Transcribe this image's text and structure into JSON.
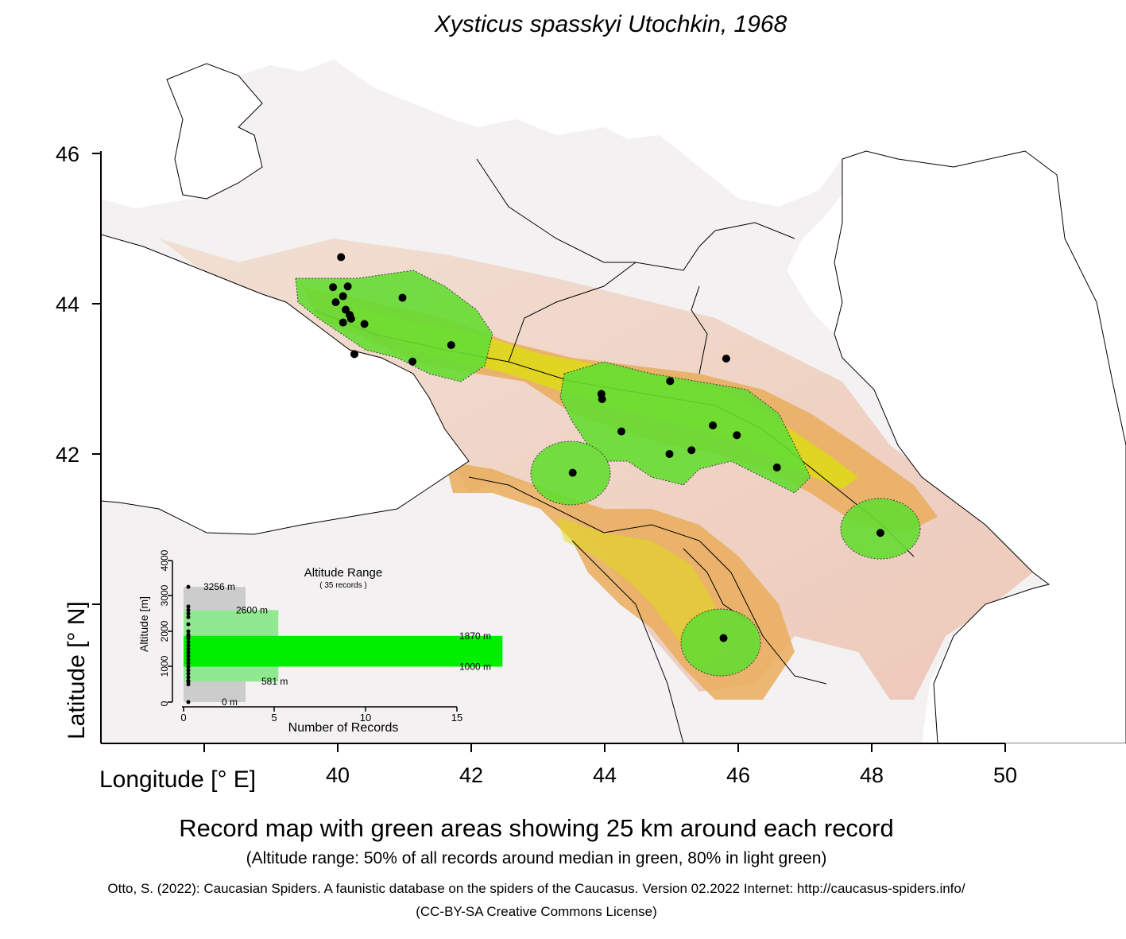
{
  "title": "Xysticus spasskyi Utochkin, 1968",
  "axes": {
    "x_label": "Longitude [° E]",
    "y_label": "Latitude [° N]",
    "x_ticks": [
      "40",
      "42",
      "44",
      "46",
      "48",
      "50"
    ],
    "y_ticks": [
      "46",
      "44",
      "42"
    ]
  },
  "captions": {
    "main": "Record map with green areas showing 25 km around each record",
    "sub": "(Altitude range: 50% of all records around median in green, 80% in light green)",
    "citation": "Otto, S. (2022): Caucasian Spiders. A faunistic database on the spiders of the Caucasus. Version 02.2022 Internet: http://caucasus-spiders.info/",
    "license": "(CC-BY-SA Creative Commons License)"
  },
  "inset": {
    "title": "Altitude Range",
    "subtitle": "( 35 records )",
    "y_label": "Altitude [m]",
    "x_label": "Number of Records",
    "y_ticks": [
      "0",
      "1000",
      "2000",
      "3000",
      "4000"
    ],
    "x_ticks": [
      "0",
      "5",
      "10",
      "15"
    ],
    "labels": {
      "max": "3256  m",
      "p80_high": "2600  m",
      "p50_high": "1870  m",
      "p50_low": "1000  m",
      "p80_low": "581  m",
      "min": "0  m"
    },
    "altitude_values": {
      "max": 3256,
      "p80_high": 2600,
      "p50_high": 1870,
      "p50_low": 1000,
      "p80_low": 581,
      "min": 0,
      "count_50": 17.5,
      "count_80": 5.2,
      "count_all": 3.4
    },
    "record_altitudes": [
      3256,
      2700,
      2600,
      2500,
      2400,
      2200,
      2000,
      1900,
      1870,
      1800,
      1700,
      1600,
      1500,
      1400,
      1300,
      1200,
      1100,
      1000,
      900,
      800,
      700,
      600,
      581,
      500,
      0
    ]
  },
  "records": [
    {
      "lon": 40.05,
      "lat": 44.62
    },
    {
      "lon": 39.93,
      "lat": 44.22
    },
    {
      "lon": 40.15,
      "lat": 44.23
    },
    {
      "lon": 40.08,
      "lat": 44.1
    },
    {
      "lon": 39.97,
      "lat": 44.02
    },
    {
      "lon": 40.12,
      "lat": 43.92
    },
    {
      "lon": 40.18,
      "lat": 43.85
    },
    {
      "lon": 40.2,
      "lat": 43.8
    },
    {
      "lon": 40.08,
      "lat": 43.75
    },
    {
      "lon": 40.4,
      "lat": 43.73
    },
    {
      "lon": 40.97,
      "lat": 44.08
    },
    {
      "lon": 40.25,
      "lat": 43.33
    },
    {
      "lon": 41.12,
      "lat": 43.23
    },
    {
      "lon": 41.7,
      "lat": 43.45
    },
    {
      "lon": 43.95,
      "lat": 42.8
    },
    {
      "lon": 43.96,
      "lat": 42.73
    },
    {
      "lon": 44.25,
      "lat": 42.3
    },
    {
      "lon": 43.52,
      "lat": 41.75
    },
    {
      "lon": 44.98,
      "lat": 42.97
    },
    {
      "lon": 45.82,
      "lat": 43.27
    },
    {
      "lon": 45.62,
      "lat": 42.38
    },
    {
      "lon": 45.98,
      "lat": 42.25
    },
    {
      "lon": 44.97,
      "lat": 42.0
    },
    {
      "lon": 45.3,
      "lat": 42.05
    },
    {
      "lon": 46.58,
      "lat": 41.82
    },
    {
      "lon": 48.13,
      "lat": 40.95
    },
    {
      "lon": 45.78,
      "lat": 39.55
    }
  ],
  "colors": {
    "buffer_green": "#66dd33",
    "median_green": "#00ee00",
    "light_green": "#90e890",
    "gray_range": "#cccccc",
    "lowland": "#f2f2f2",
    "foothill": "#ecb890",
    "upland": "#e8b45a",
    "highland": "#dede00",
    "alpine": "#a8d870"
  }
}
